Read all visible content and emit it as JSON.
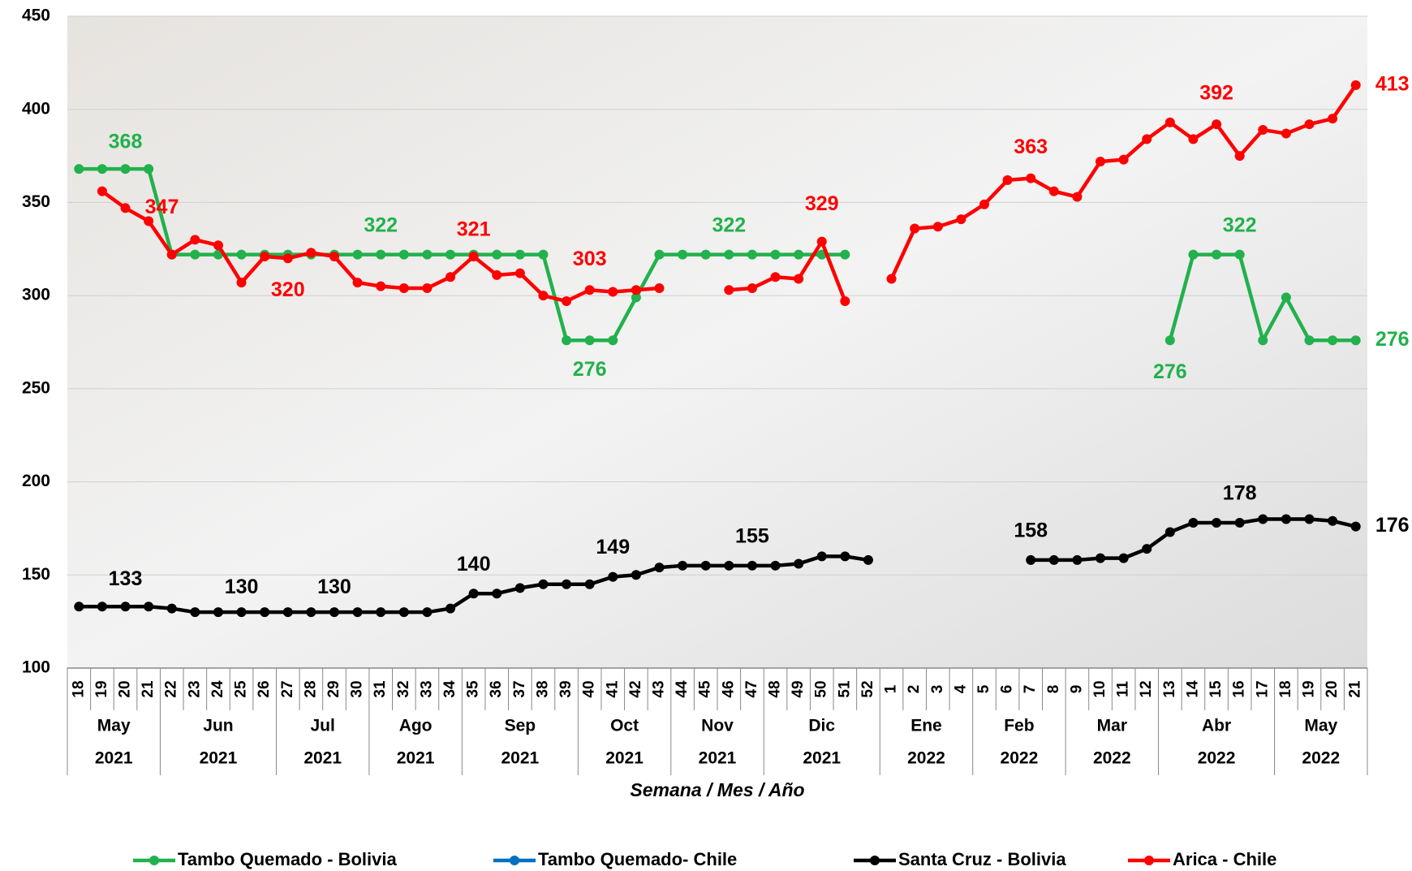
{
  "chart_data": {
    "type": "line",
    "x_axis_label": "Semana / Mes / Año",
    "categories": [
      "18",
      "19",
      "20",
      "21",
      "22",
      "23",
      "24",
      "25",
      "26",
      "27",
      "28",
      "29",
      "30",
      "31",
      "32",
      "33",
      "34",
      "35",
      "36",
      "37",
      "38",
      "39",
      "40",
      "41",
      "42",
      "43",
      "44",
      "45",
      "46",
      "47",
      "48",
      "49",
      "50",
      "51",
      "52",
      "1",
      "2",
      "3",
      "4",
      "5",
      "6",
      "7",
      "8",
      "9",
      "10",
      "11",
      "12",
      "13",
      "14",
      "15",
      "16",
      "17",
      "18",
      "19",
      "20",
      "21"
    ],
    "months": [
      "May",
      "May",
      "May",
      "May",
      "Jun",
      "Jun",
      "Jun",
      "Jun",
      "Jun",
      "Jul",
      "Jul",
      "Jul",
      "Jul",
      "Ago",
      "Ago",
      "Ago",
      "Ago",
      "Sep",
      "Sep",
      "Sep",
      "Sep",
      "Sep",
      "Oct",
      "Oct",
      "Oct",
      "Oct",
      "Nov",
      "Nov",
      "Nov",
      "Nov",
      "Dic",
      "Dic",
      "Dic",
      "Dic",
      "Dic",
      "Ene",
      "Ene",
      "Ene",
      "Ene",
      "Feb",
      "Feb",
      "Feb",
      "Feb",
      "Mar",
      "Mar",
      "Mar",
      "Mar",
      "Abr",
      "Abr",
      "Abr",
      "Abr",
      "Abr",
      "May",
      "May",
      "May",
      "May"
    ],
    "years": [
      "2021",
      "2021",
      "2021",
      "2021",
      "2021",
      "2021",
      "2021",
      "2021",
      "2021",
      "2021",
      "2021",
      "2021",
      "2021",
      "2021",
      "2021",
      "2021",
      "2021",
      "2021",
      "2021",
      "2021",
      "2021",
      "2021",
      "2021",
      "2021",
      "2021",
      "2021",
      "2021",
      "2021",
      "2021",
      "2021",
      "2021",
      "2021",
      "2021",
      "2021",
      "2021",
      "2022",
      "2022",
      "2022",
      "2022",
      "2022",
      "2022",
      "2022",
      "2022",
      "2022",
      "2022",
      "2022",
      "2022",
      "2022",
      "2022",
      "2022",
      "2022",
      "2022",
      "2022",
      "2022",
      "2022",
      "2022"
    ],
    "ylim": [
      100,
      450
    ],
    "yticks": [
      100,
      150,
      200,
      250,
      300,
      350,
      400,
      450
    ],
    "grid": true,
    "series": [
      {
        "name": "Tambo Quemado - Bolivia",
        "color": "#22b14c",
        "values": [
          368,
          368,
          368,
          368,
          322,
          322,
          322,
          322,
          322,
          322,
          322,
          322,
          322,
          322,
          322,
          322,
          322,
          322,
          322,
          322,
          322,
          276,
          276,
          276,
          299,
          322,
          322,
          322,
          322,
          322,
          322,
          322,
          322,
          322,
          null,
          null,
          null,
          null,
          null,
          null,
          null,
          null,
          null,
          null,
          null,
          null,
          null,
          276,
          322,
          322,
          322,
          276,
          299,
          276,
          276,
          276
        ]
      },
      {
        "name": "Tambo Quemado- Chile",
        "color": "#0070c0",
        "values": [
          null,
          null,
          null,
          null,
          null,
          null,
          null,
          null,
          null,
          null,
          null,
          null,
          null,
          null,
          null,
          null,
          null,
          null,
          null,
          null,
          null,
          null,
          null,
          null,
          null,
          null,
          null,
          null,
          null,
          null,
          null,
          null,
          null,
          null,
          null,
          null,
          null,
          null,
          null,
          null,
          null,
          null,
          null,
          null,
          null,
          null,
          null,
          null,
          null,
          null,
          null,
          null,
          null,
          null,
          null,
          null
        ]
      },
      {
        "name": "Santa Cruz - Bolivia",
        "color": "#000000",
        "values": [
          133,
          133,
          133,
          133,
          132,
          130,
          130,
          130,
          130,
          130,
          130,
          130,
          130,
          130,
          130,
          130,
          132,
          140,
          140,
          143,
          145,
          145,
          145,
          149,
          150,
          154,
          155,
          155,
          155,
          155,
          155,
          156,
          160,
          160,
          158,
          null,
          null,
          null,
          null,
          null,
          null,
          158,
          158,
          158,
          159,
          159,
          164,
          173,
          178,
          178,
          178,
          180,
          180,
          180,
          179,
          176
        ]
      },
      {
        "name": "Arica - Chile",
        "color": "#ff0000",
        "values": [
          null,
          356,
          347,
          340,
          322,
          330,
          327,
          307,
          321,
          320,
          323,
          321,
          307,
          305,
          304,
          304,
          310,
          321,
          311,
          312,
          300,
          297,
          303,
          302,
          303,
          304,
          null,
          null,
          303,
          304,
          310,
          309,
          329,
          297,
          null,
          309,
          336,
          337,
          341,
          349,
          362,
          363,
          356,
          353,
          372,
          373,
          384,
          393,
          384,
          392,
          375,
          389,
          387,
          392,
          395,
          413
        ]
      }
    ]
  }
}
